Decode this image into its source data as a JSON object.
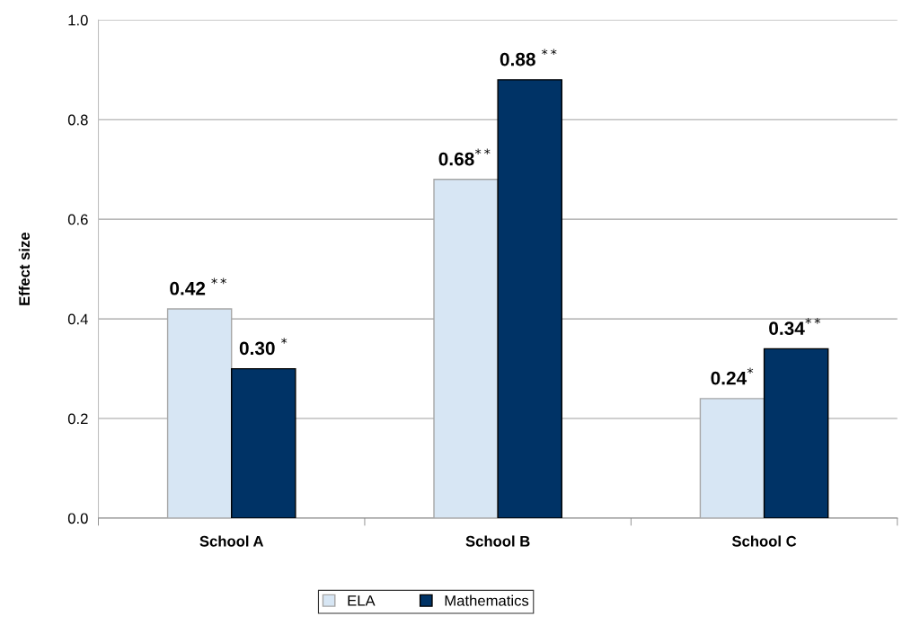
{
  "chart_data": {
    "type": "bar",
    "ylabel": "Effect size",
    "categories": [
      "School A",
      "School B",
      "School C"
    ],
    "series": [
      {
        "name": "ELA",
        "color": "#d7e6f4",
        "values": [
          0.42,
          0.68,
          0.24
        ],
        "value_labels": [
          "0.42 $^{**}$",
          "0.68$^{**}$",
          "0.24$^{*}$"
        ]
      },
      {
        "name": "Mathematics",
        "color": "#003366",
        "values": [
          0.3,
          0.88,
          0.34
        ],
        "value_labels": [
          "0.30 $^{*}$",
          "0.88 $^{**}$",
          "0.34$^{**}$"
        ]
      }
    ],
    "ylim": [
      0,
      1.0
    ],
    "yticks": [
      {
        "value": 0,
        "label": "0.0"
      },
      {
        "value": 0.2,
        "label": "0.2"
      },
      {
        "value": 0.4,
        "label": "0.4"
      },
      {
        "value": 0.6,
        "label": "0.6"
      },
      {
        "value": 0.8,
        "label": "0.8"
      },
      {
        "value": 1.0,
        "label": "1.0"
      }
    ],
    "grid": "y",
    "legend": "bottom"
  }
}
